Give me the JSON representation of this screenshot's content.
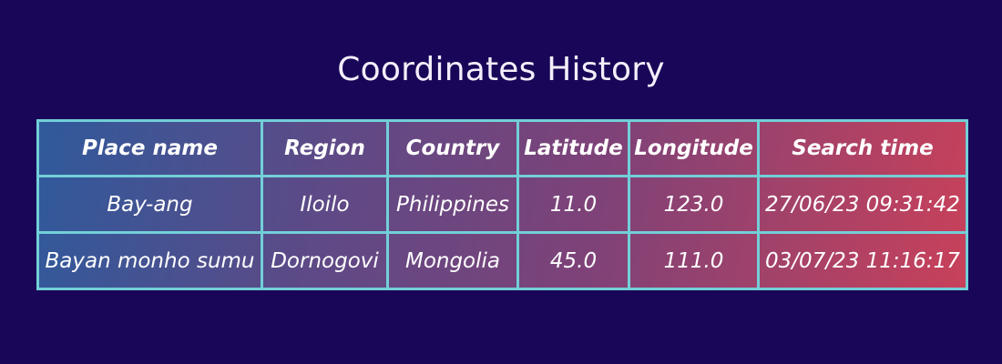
{
  "page": {
    "title": "Coordinates History"
  },
  "table": {
    "headers": [
      "Place name",
      "Region",
      "Country",
      "Latitude",
      "Longitude",
      "Search time"
    ],
    "rows": [
      [
        "Bay-ang",
        "Iloilo",
        "Philippines",
        "11.0",
        "123.0",
        "27/06/23 09:31:42"
      ],
      [
        "Bayan monho sumu",
        "Dornogovi",
        "Mongolia",
        "45.0",
        "111.0",
        "03/07/23 11:16:17"
      ]
    ]
  },
  "colors": {
    "background": "#1a0658",
    "border": "#72cfd8",
    "gradient_start": "#2f5a9c",
    "gradient_end": "#c8415a",
    "text": "#ffffff"
  }
}
